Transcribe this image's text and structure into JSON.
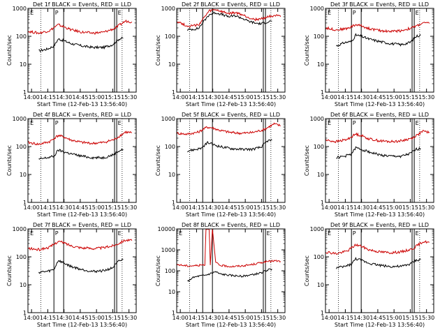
{
  "time_labels": [
    "14:00",
    "14:15",
    "14:30",
    "14:45",
    "15:00",
    "15:15",
    "15:30"
  ],
  "y_tick_labels": [
    "1",
    "10",
    "100",
    "1000"
  ],
  "y_tick_labels_big": [
    "1",
    "10",
    "100",
    "1000",
    "10000"
  ],
  "ylabel": "Counts/sec",
  "xlabel": "Start Time (12-Feb-13 13:56:40)",
  "colors": {
    "events": "#000000",
    "lld": "#cc0000",
    "axes": "#000000"
  },
  "chart_data": [
    {
      "type": "line",
      "title": "Det 1f BLACK = Events, RED = LLD",
      "yscale": "log",
      "ylim": [
        1,
        1000
      ],
      "xlabel": "Start Time (12-Feb-13 13:56:40)",
      "ylabel": "Counts/sec",
      "xlim_minutes": [
        0,
        100
      ],
      "dotted_lines_minutes": [
        12,
        87
      ],
      "solid_lines_minutes": [
        24,
        33,
        80,
        82
      ],
      "region_labels": [
        {
          "text": "E",
          "minute": 2
        },
        {
          "text": "P",
          "minute": 25
        },
        {
          "text": "E",
          "minute": 83
        }
      ],
      "series": [
        {
          "name": "Events",
          "color": "#000000",
          "x_minutes": [
            10,
            18,
            24,
            28,
            33,
            40,
            50,
            60,
            70,
            78,
            84,
            88
          ],
          "values": [
            30,
            35,
            45,
            80,
            70,
            55,
            45,
            40,
            40,
            50,
            80,
            85
          ]
        },
        {
          "name": "LLD",
          "color": "#cc0000",
          "x_minutes": [
            0,
            10,
            20,
            28,
            33,
            40,
            50,
            60,
            70,
            80,
            90,
            96
          ],
          "values": [
            150,
            130,
            160,
            260,
            220,
            170,
            140,
            130,
            140,
            190,
            350,
            330
          ]
        }
      ]
    },
    {
      "type": "line",
      "title": "Det 2f BLACK = Events, RED = LLD",
      "yscale": "log",
      "ylim": [
        1,
        1000
      ],
      "xlabel": "Start Time (12-Feb-13 13:56:40)",
      "ylabel": "Counts/sec",
      "xlim_minutes": [
        0,
        100
      ],
      "dotted_lines_minutes": [
        12,
        87
      ],
      "solid_lines_minutes": [
        24,
        33,
        80,
        82
      ],
      "region_labels": [],
      "series": [
        {
          "name": "Events",
          "color": "#000000",
          "x_minutes": [
            10,
            20,
            26,
            30,
            36,
            42,
            48,
            54,
            60,
            66,
            72,
            78,
            84,
            88
          ],
          "values": [
            170,
            190,
            380,
            600,
            700,
            600,
            500,
            550,
            450,
            350,
            300,
            280,
            330,
            350
          ]
        },
        {
          "name": "LLD",
          "color": "#cc0000",
          "x_minutes": [
            0,
            10,
            20,
            26,
            30,
            36,
            42,
            48,
            54,
            60,
            66,
            72,
            78,
            84,
            90,
            96
          ],
          "values": [
            350,
            230,
            250,
            500,
            800,
            900,
            750,
            650,
            700,
            600,
            480,
            400,
            420,
            500,
            560,
            500
          ]
        }
      ]
    },
    {
      "type": "line",
      "title": "Det 3f BLACK = Events, RED = LLD",
      "yscale": "log",
      "ylim": [
        1,
        1000
      ],
      "xlabel": "Start Time (12-Feb-13 13:56:40)",
      "ylabel": "Counts/sec",
      "xlim_minutes": [
        0,
        100
      ],
      "dotted_lines_minutes": [
        12,
        87
      ],
      "solid_lines_minutes": [
        24,
        33,
        80,
        82
      ],
      "region_labels": [
        {
          "text": "E",
          "minute": 2
        },
        {
          "text": "P",
          "minute": 25
        },
        {
          "text": "E",
          "minute": 83
        }
      ],
      "series": [
        {
          "name": "Events",
          "color": "#000000",
          "x_minutes": [
            10,
            18,
            24,
            28,
            33,
            40,
            50,
            60,
            70,
            78,
            84,
            88
          ],
          "values": [
            45,
            60,
            65,
            110,
            100,
            80,
            65,
            55,
            50,
            60,
            100,
            110
          ]
        },
        {
          "name": "LLD",
          "color": "#cc0000",
          "x_minutes": [
            0,
            10,
            20,
            28,
            33,
            40,
            50,
            60,
            70,
            80,
            90,
            96
          ],
          "values": [
            200,
            170,
            190,
            260,
            240,
            190,
            160,
            150,
            160,
            200,
            300,
            290
          ]
        }
      ]
    },
    {
      "type": "line",
      "title": "Det 4f BLACK = Events, RED = LLD",
      "yscale": "log",
      "ylim": [
        1,
        1000
      ],
      "xlabel": "Start Time (12-Feb-13 13:56:40)",
      "ylabel": "Counts/sec",
      "xlim_minutes": [
        0,
        100
      ],
      "dotted_lines_minutes": [
        12,
        87
      ],
      "solid_lines_minutes": [
        24,
        33,
        80,
        82
      ],
      "region_labels": [
        {
          "text": "E",
          "minute": 2
        },
        {
          "text": "P",
          "minute": 25
        },
        {
          "text": "E",
          "minute": 83
        }
      ],
      "series": [
        {
          "name": "Events",
          "color": "#000000",
          "x_minutes": [
            10,
            18,
            24,
            28,
            33,
            40,
            50,
            60,
            70,
            78,
            84,
            88
          ],
          "values": [
            35,
            40,
            45,
            75,
            65,
            55,
            45,
            40,
            40,
            50,
            70,
            80
          ]
        },
        {
          "name": "LLD",
          "color": "#cc0000",
          "x_minutes": [
            0,
            10,
            20,
            28,
            33,
            40,
            50,
            60,
            70,
            80,
            90,
            96
          ],
          "values": [
            140,
            120,
            150,
            250,
            220,
            170,
            140,
            130,
            140,
            180,
            330,
            310
          ]
        }
      ]
    },
    {
      "type": "line",
      "title": "Det 5f BLACK = Events, RED = LLD",
      "yscale": "log",
      "ylim": [
        1,
        1000
      ],
      "xlabel": "Start Time (12-Feb-13 13:56:40)",
      "ylabel": "Counts/sec",
      "xlim_minutes": [
        0,
        100
      ],
      "dotted_lines_minutes": [
        12,
        87
      ],
      "solid_lines_minutes": [
        24,
        33,
        80,
        82
      ],
      "region_labels": [],
      "series": [
        {
          "name": "Events",
          "color": "#000000",
          "x_minutes": [
            10,
            18,
            24,
            28,
            33,
            40,
            50,
            60,
            70,
            78,
            84,
            88
          ],
          "values": [
            70,
            80,
            90,
            140,
            120,
            100,
            85,
            80,
            80,
            95,
            160,
            170
          ]
        },
        {
          "name": "LLD",
          "color": "#cc0000",
          "x_minutes": [
            0,
            10,
            20,
            28,
            33,
            40,
            50,
            60,
            70,
            80,
            90,
            96
          ],
          "values": [
            300,
            280,
            330,
            500,
            470,
            380,
            320,
            300,
            320,
            400,
            650,
            560
          ]
        }
      ]
    },
    {
      "type": "line",
      "title": "Det 6f BLACK = Events, RED = LLD",
      "yscale": "log",
      "ylim": [
        1,
        1000
      ],
      "xlabel": "Start Time (12-Feb-13 13:56:40)",
      "ylabel": "Counts/sec",
      "xlim_minutes": [
        0,
        100
      ],
      "dotted_lines_minutes": [
        12,
        87
      ],
      "solid_lines_minutes": [
        24,
        33,
        80,
        82
      ],
      "region_labels": [
        {
          "text": "E",
          "minute": 2
        },
        {
          "text": "P",
          "minute": 25
        },
        {
          "text": "E",
          "minute": 83
        }
      ],
      "series": [
        {
          "name": "Events",
          "color": "#000000",
          "x_minutes": [
            10,
            18,
            24,
            28,
            33,
            40,
            50,
            60,
            70,
            78,
            84,
            88
          ],
          "values": [
            40,
            45,
            55,
            90,
            80,
            65,
            50,
            45,
            45,
            55,
            80,
            85
          ]
        },
        {
          "name": "LLD",
          "color": "#cc0000",
          "x_minutes": [
            0,
            10,
            20,
            28,
            33,
            40,
            50,
            60,
            70,
            80,
            90,
            96
          ],
          "values": [
            170,
            150,
            180,
            280,
            250,
            190,
            160,
            150,
            160,
            200,
            350,
            330
          ]
        }
      ]
    },
    {
      "type": "line",
      "title": "Det 7f BLACK = Events, RED = LLD",
      "yscale": "log",
      "ylim": [
        1,
        1000
      ],
      "xlabel": "Start Time (12-Feb-13 13:56:40)",
      "ylabel": "Counts/sec",
      "xlim_minutes": [
        0,
        100
      ],
      "dotted_lines_minutes": [
        12,
        87
      ],
      "solid_lines_minutes": [
        24,
        33,
        80,
        82
      ],
      "region_labels": [
        {
          "text": "E",
          "minute": 2
        },
        {
          "text": "P",
          "minute": 25
        },
        {
          "text": "E",
          "minute": 83
        }
      ],
      "series": [
        {
          "name": "Events",
          "color": "#000000",
          "x_minutes": [
            10,
            18,
            24,
            28,
            33,
            40,
            50,
            60,
            70,
            78,
            84,
            88
          ],
          "values": [
            28,
            30,
            35,
            75,
            60,
            45,
            35,
            30,
            32,
            40,
            70,
            80
          ]
        },
        {
          "name": "LLD",
          "color": "#cc0000",
          "x_minutes": [
            0,
            10,
            20,
            28,
            33,
            40,
            50,
            60,
            70,
            80,
            90,
            96
          ],
          "values": [
            200,
            180,
            220,
            360,
            320,
            250,
            210,
            200,
            210,
            260,
            400,
            380
          ]
        }
      ]
    },
    {
      "type": "line",
      "title": "Det 8f BLACK = Events, RED = LLD",
      "yscale": "log",
      "ylim": [
        1,
        10000
      ],
      "xlabel": "Start Time (12-Feb-13 13:56:40)",
      "ylabel": "Counts/sec",
      "xlim_minutes": [
        0,
        100
      ],
      "dotted_lines_minutes": [
        12,
        87
      ],
      "solid_lines_minutes": [
        24,
        33,
        80,
        82
      ],
      "region_labels": [
        {
          "text": "E",
          "minute": 2
        },
        {
          "text": "E",
          "minute": 83
        }
      ],
      "series": [
        {
          "name": "Events",
          "color": "#000000",
          "x_minutes": [
            10,
            14,
            20,
            26,
            30,
            36,
            40,
            50,
            60,
            70,
            78,
            84,
            88
          ],
          "values": [
            30,
            45,
            55,
            60,
            70,
            90,
            70,
            60,
            55,
            65,
            80,
            110,
            120
          ]
        },
        {
          "name": "LLD",
          "color": "#cc0000",
          "x_minutes": [
            0,
            10,
            20,
            26,
            27,
            30,
            31,
            33,
            36,
            40,
            50,
            60,
            70,
            80,
            90,
            96
          ],
          "values": [
            200,
            170,
            180,
            200,
            10000,
            10000,
            200,
            10000,
            250,
            180,
            160,
            170,
            200,
            260,
            300,
            280
          ]
        }
      ]
    },
    {
      "type": "line",
      "title": "Det 9f BLACK = Events, RED = LLD",
      "yscale": "log",
      "ylim": [
        1,
        1000
      ],
      "xlabel": "Start Time (12-Feb-13 13:56:40)",
      "ylabel": "Counts/sec",
      "xlim_minutes": [
        0,
        100
      ],
      "dotted_lines_minutes": [
        12,
        87
      ],
      "solid_lines_minutes": [
        24,
        33,
        80,
        82
      ],
      "region_labels": [
        {
          "text": "E",
          "minute": 2
        },
        {
          "text": "P",
          "minute": 25
        },
        {
          "text": "E",
          "minute": 83
        }
      ],
      "series": [
        {
          "name": "Events",
          "color": "#000000",
          "x_minutes": [
            10,
            18,
            24,
            28,
            33,
            40,
            50,
            60,
            70,
            78,
            84,
            88
          ],
          "values": [
            40,
            45,
            55,
            85,
            75,
            60,
            50,
            45,
            45,
            55,
            75,
            80
          ]
        },
        {
          "name": "LLD",
          "color": "#cc0000",
          "x_minutes": [
            0,
            10,
            20,
            28,
            33,
            40,
            50,
            60,
            70,
            80,
            90,
            96
          ],
          "values": [
            150,
            130,
            160,
            270,
            240,
            180,
            150,
            140,
            150,
            190,
            350,
            330
          ]
        }
      ]
    }
  ]
}
